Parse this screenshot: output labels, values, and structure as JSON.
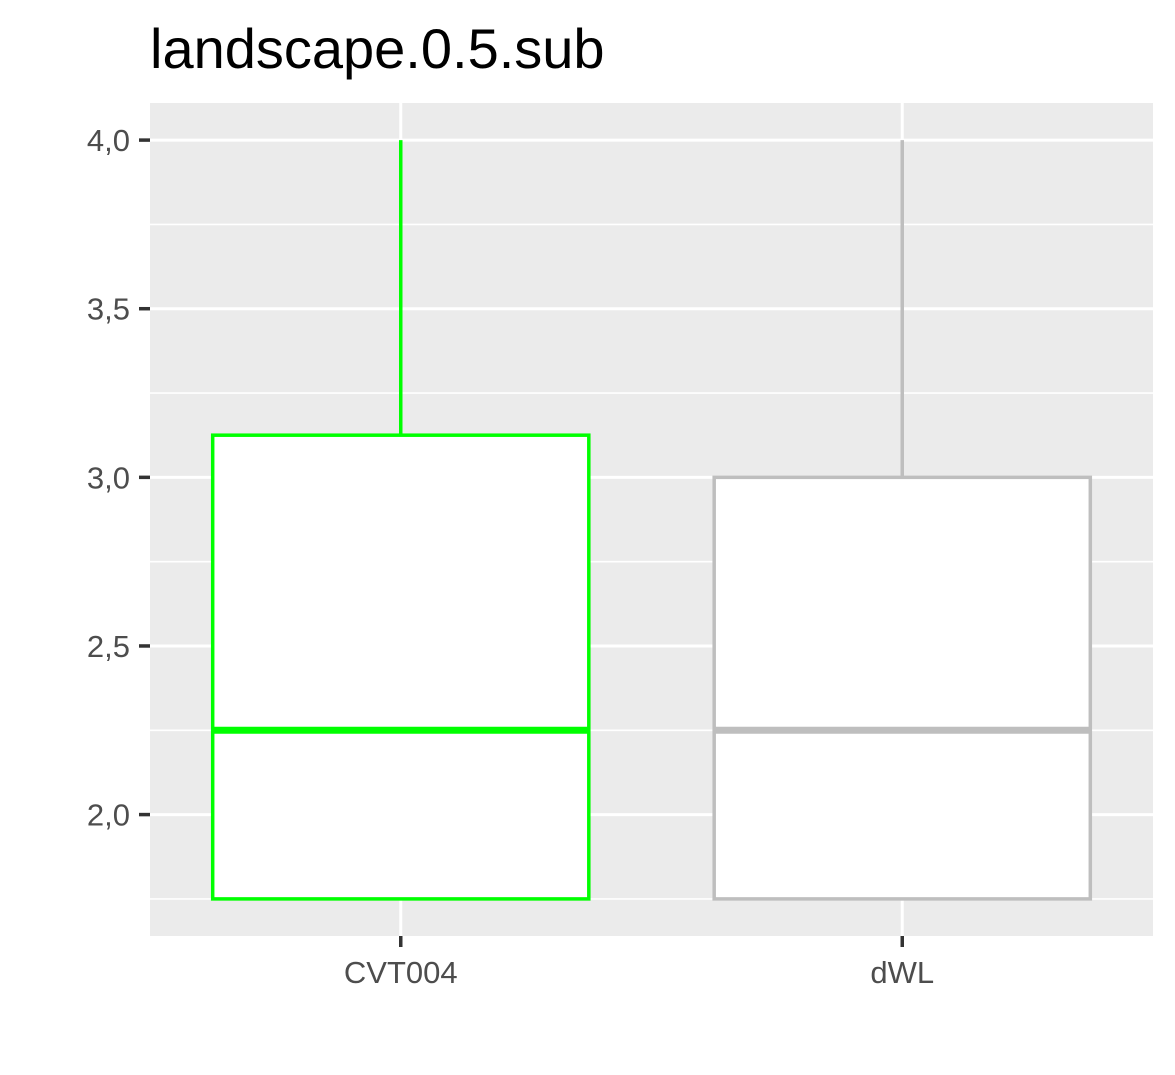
{
  "chart_data": {
    "type": "boxplot",
    "title": "landscape.0.5.sub",
    "xlabel": "",
    "ylabel": "",
    "categories": [
      "CVT004",
      "dWL"
    ],
    "ylim": [
      1.64,
      4.11
    ],
    "y_ticks": [
      {
        "value": 2.0,
        "label": "2,0"
      },
      {
        "value": 2.5,
        "label": "2,5"
      },
      {
        "value": 3.0,
        "label": "3,0"
      },
      {
        "value": 3.5,
        "label": "3,5"
      },
      {
        "value": 4.0,
        "label": "4,0"
      }
    ],
    "y_minor_ticks": [
      1.75,
      2.25,
      2.75,
      3.25,
      3.75
    ],
    "grid": true,
    "legend": "none",
    "boxes": [
      {
        "category": "CVT004",
        "min": 1.75,
        "q1": 1.75,
        "median": 2.25,
        "q3": 3.125,
        "max": 4.0,
        "color": "#00ff00"
      },
      {
        "category": "dWL",
        "min": 1.75,
        "q1": 1.75,
        "median": 2.25,
        "q3": 3.0,
        "max": 4.0,
        "color": "#bebebe"
      }
    ],
    "panel_color": "#ebebeb",
    "grid_color": "#ffffff"
  }
}
